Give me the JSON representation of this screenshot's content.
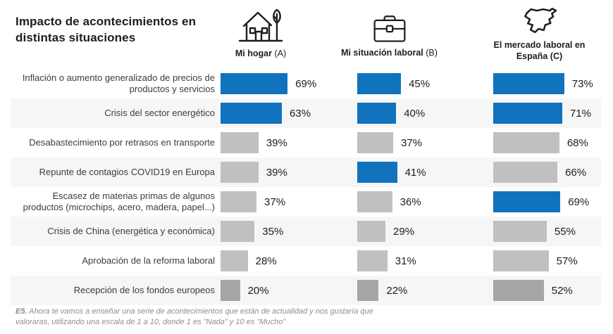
{
  "title": "Impacto de acontecimientos en distintas situaciones",
  "columns": [
    {
      "icon": "house-tree-icon",
      "label_bold": "Mi hogar",
      "label_plain": " (A)"
    },
    {
      "icon": "briefcase-icon",
      "label_bold": "Mi situación laboral",
      "label_plain": " (B)"
    },
    {
      "icon": "spain-map-icon",
      "label_bold": "El mercado laboral en España (C)",
      "label_plain": ""
    }
  ],
  "chart_data": {
    "type": "bar",
    "title": "Impacto de acontecimientos en distintas situaciones",
    "orientation": "horizontal",
    "value_suffix": "%",
    "xlim": [
      0,
      100
    ],
    "grid": false,
    "categories": [
      "Inflación o aumento generalizado de precios de productos y servicios",
      "Crisis del sector energético",
      "Desabastecimiento por retrasos en transporte",
      "Repunte de contagios COVID19 en Europa",
      "Escasez de materias primas de algunos productos (microchips, acero, madera, papel...)",
      "Crisis de China (energética y económica)",
      "Aprobación de la reforma laboral",
      "Recepción de los fondos europeos"
    ],
    "series": [
      {
        "name": "Mi hogar (A)",
        "values": [
          69,
          63,
          39,
          39,
          37,
          35,
          28,
          20
        ],
        "colors": [
          "blue",
          "blue",
          "gray",
          "gray",
          "gray",
          "gray",
          "gray",
          "darkgray"
        ]
      },
      {
        "name": "Mi situación laboral (B)",
        "values": [
          45,
          40,
          37,
          41,
          36,
          29,
          31,
          22
        ],
        "colors": [
          "blue",
          "blue",
          "gray",
          "blue",
          "gray",
          "gray",
          "gray",
          "darkgray"
        ]
      },
      {
        "name": "El mercado laboral en España (C)",
        "values": [
          73,
          71,
          68,
          66,
          69,
          55,
          57,
          52
        ],
        "colors": [
          "blue",
          "blue",
          "gray",
          "gray",
          "blue",
          "gray",
          "gray",
          "darkgray"
        ]
      }
    ],
    "palette": {
      "blue": "#1173bd",
      "gray": "#c0c0c0",
      "darkgray": "#a6a6a6"
    },
    "stripe_color": "#f6f6f6"
  },
  "footer": {
    "prefix": "E5.",
    "text": " Ahora te vamos a enseñar una serie de acontecimientos que están de actualidad y nos gustaría que valoraras, utilizando una escala de 1 a 10, donde 1 es \"Nada\" y 10 es \"Mucho\""
  }
}
